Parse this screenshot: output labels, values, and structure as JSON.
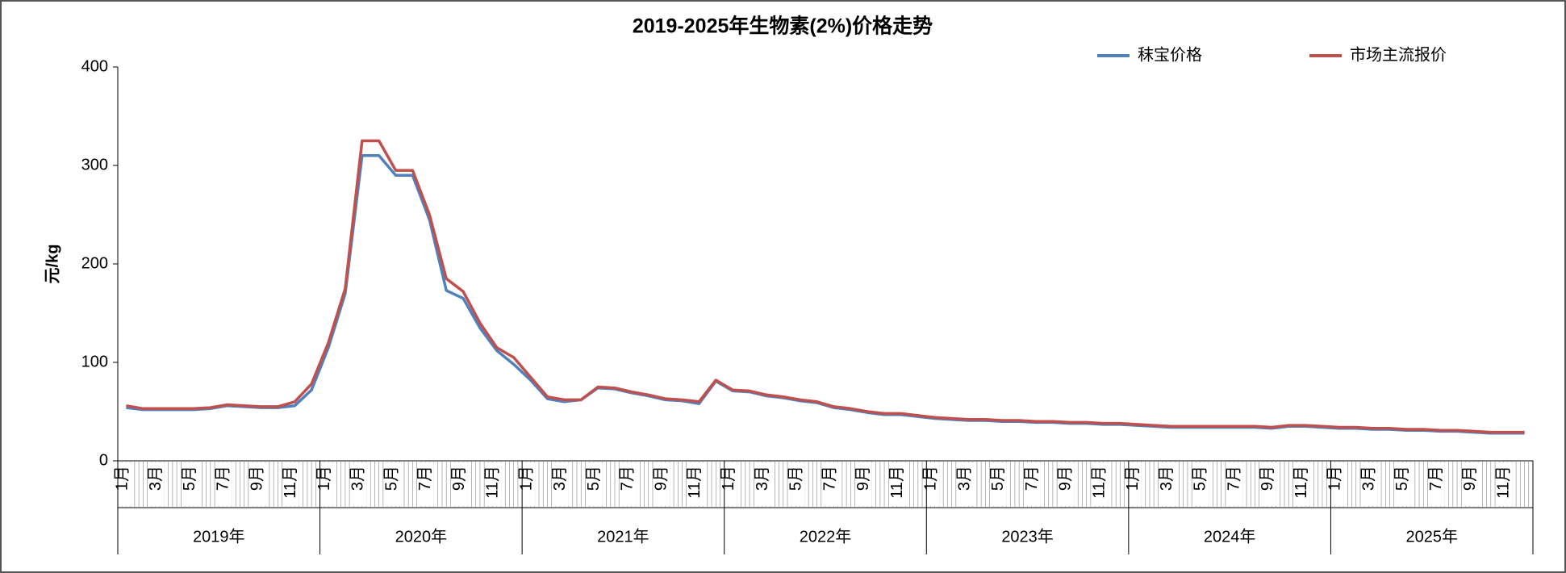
{
  "chart_data": {
    "type": "line",
    "title": "2019-2025年生物素(2%)价格走势",
    "y_label": "元/kg",
    "categories": [
      "1月",
      null,
      "3月",
      null,
      "5月",
      null,
      "7月",
      null,
      "9月",
      null,
      "11月",
      null,
      "1月",
      null,
      "3月",
      null,
      "5月",
      null,
      "7月",
      null,
      "9月",
      null,
      "11月",
      null,
      "1月",
      null,
      "3月",
      null,
      "5月",
      null,
      "7月",
      null,
      "9月",
      null,
      "11月",
      null,
      "1月",
      null,
      "3月",
      null,
      "5月",
      null,
      "7月",
      null,
      "9月",
      null,
      "11月",
      null,
      "1月",
      null,
      "3月",
      null,
      "5月",
      null,
      "7月",
      null,
      "9月",
      null,
      "11月",
      null,
      "1月",
      null,
      "3月",
      null,
      "5月",
      null,
      "7月",
      null,
      "9月",
      null,
      "11月",
      null,
      "1月",
      null,
      "3月",
      null,
      "5月",
      null,
      "7月",
      null,
      "9月",
      null,
      "11月",
      null
    ],
    "year_groups": [
      "2019年",
      "2020年",
      "2021年",
      "2022年",
      "2023年",
      "2024年",
      "2025年"
    ],
    "series": [
      {
        "name": "秣宝价格",
        "color": "#4f81bd",
        "values": [
          54,
          52,
          52,
          52,
          52,
          53,
          56,
          55,
          54,
          54,
          56,
          72,
          115,
          170,
          310,
          310,
          290,
          290,
          245,
          173,
          165,
          135,
          112,
          98,
          82,
          63,
          60,
          62,
          74,
          73,
          69,
          66,
          62,
          61,
          58,
          81,
          71,
          70,
          66,
          64,
          61,
          59,
          54,
          52,
          49,
          47,
          47,
          45,
          43,
          42,
          41,
          41,
          40,
          40,
          39,
          39,
          38,
          38,
          37,
          37,
          36,
          35,
          34,
          34,
          34,
          34,
          34,
          34,
          33,
          35,
          35,
          34,
          33,
          33,
          32,
          32,
          31,
          31,
          30,
          30,
          29,
          28,
          28,
          28
        ]
      },
      {
        "name": "市场主流报价",
        "color": "#c0504d",
        "values": [
          56,
          53,
          53,
          53,
          53,
          54,
          57,
          56,
          55,
          55,
          60,
          78,
          120,
          175,
          325,
          325,
          295,
          295,
          250,
          185,
          172,
          140,
          115,
          105,
          85,
          65,
          62,
          62,
          75,
          74,
          70,
          67,
          63,
          62,
          60,
          82,
          72,
          71,
          67,
          65,
          62,
          60,
          55,
          53,
          50,
          48,
          48,
          46,
          44,
          43,
          42,
          42,
          41,
          41,
          40,
          40,
          39,
          39,
          38,
          38,
          37,
          36,
          35,
          35,
          35,
          35,
          35,
          35,
          34,
          36,
          36,
          35,
          34,
          34,
          33,
          33,
          32,
          32,
          31,
          31,
          30,
          29,
          29,
          29
        ]
      }
    ],
    "ylim": [
      0,
      400
    ],
    "yticks": [
      0,
      100,
      200,
      300,
      400
    ],
    "legend": "top-right"
  }
}
